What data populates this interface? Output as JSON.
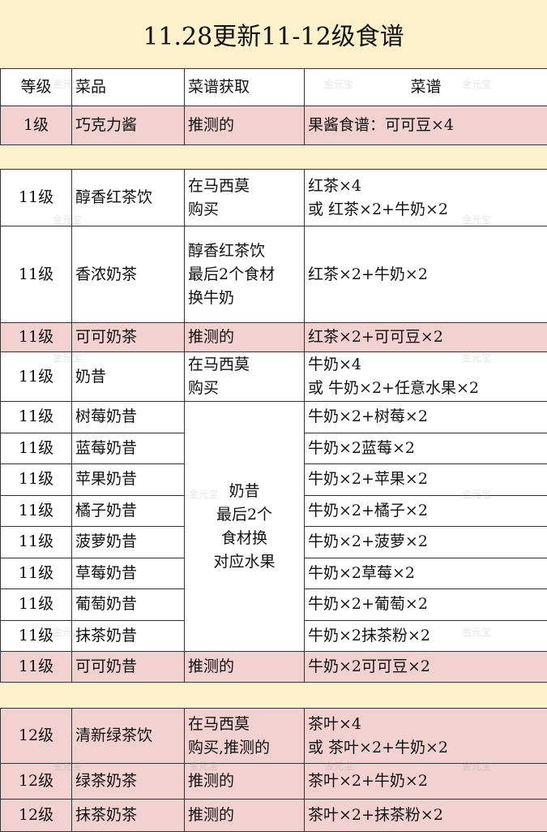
{
  "title": "11.28更新11-12级食谱",
  "watermark": "金元宝",
  "colors": {
    "background": "#fdf1cc",
    "highlight_row": "#f2d2d0",
    "normal_row": "#ffffff"
  },
  "header": {
    "level": "等级",
    "dish": "菜品",
    "source": "菜谱获取",
    "recipe": "菜谱"
  },
  "section1": [
    {
      "level": "1级",
      "dish": "巧克力酱",
      "source": "推测的",
      "recipe": "果酱食谱：可可豆×4",
      "highlight": true
    }
  ],
  "section2": [
    {
      "level": "11级",
      "dish": "醇香红茶饮",
      "source": [
        "在马西莫",
        "购买"
      ],
      "recipe": [
        "红茶×4",
        "或  红茶×2+牛奶×2"
      ]
    },
    {
      "level": "11级",
      "dish": "香浓奶茶",
      "source": [
        "醇香红茶饮",
        "最后2个食材",
        "换牛奶"
      ],
      "recipe": [
        "红茶×2+牛奶×2"
      ]
    },
    {
      "level": "11级",
      "dish": "可可奶茶",
      "source": [
        "推测的"
      ],
      "recipe": [
        "红茶×2+可可豆×2"
      ],
      "highlight": true
    },
    {
      "level": "11级",
      "dish": "奶昔",
      "source": [
        "在马西莫",
        "购买"
      ],
      "recipe": [
        "牛奶×4",
        "或  牛奶×2+任意水果×2"
      ]
    }
  ],
  "shake_group": {
    "source": [
      "奶昔",
      "最后2个",
      "食材换",
      "对应水果"
    ],
    "rows": [
      {
        "level": "11级",
        "dish": "树莓奶昔",
        "recipe": "牛奶×2+树莓×2"
      },
      {
        "level": "11级",
        "dish": "蓝莓奶昔",
        "recipe": "牛奶×2蓝莓×2"
      },
      {
        "level": "11级",
        "dish": "苹果奶昔",
        "recipe": "牛奶×2+苹果×2"
      },
      {
        "level": "11级",
        "dish": "橘子奶昔",
        "recipe": "牛奶×2+橘子×2"
      },
      {
        "level": "11级",
        "dish": "菠萝奶昔",
        "recipe": "牛奶×2+菠萝×2"
      },
      {
        "level": "11级",
        "dish": "草莓奶昔",
        "recipe": "牛奶×2草莓×2"
      },
      {
        "level": "11级",
        "dish": "葡萄奶昔",
        "recipe": "牛奶×2+葡萄×2"
      },
      {
        "level": "11级",
        "dish": "抹茶奶昔",
        "recipe": "牛奶×2抹茶粉×2"
      }
    ]
  },
  "section2_end": {
    "level": "11级",
    "dish": "可可奶昔",
    "source": "推测的",
    "recipe": "牛奶×2可可豆×2",
    "highlight": true
  },
  "section3": [
    {
      "level": "12级",
      "dish": "清新绿茶饮",
      "source": [
        "在马西莫",
        "购买,推测的"
      ],
      "recipe": [
        "茶叶×4",
        "或  茶叶×2+牛奶×2"
      ],
      "highlight": true
    },
    {
      "level": "12级",
      "dish": "绿茶奶茶",
      "source": [
        "推测的"
      ],
      "recipe": [
        "茶叶×2+牛奶×2"
      ],
      "highlight": true
    },
    {
      "level": "12级",
      "dish": "抹茶奶茶",
      "source": [
        "推测的"
      ],
      "recipe": [
        "茶叶×2+抹茶粉×2"
      ],
      "highlight": true
    }
  ]
}
